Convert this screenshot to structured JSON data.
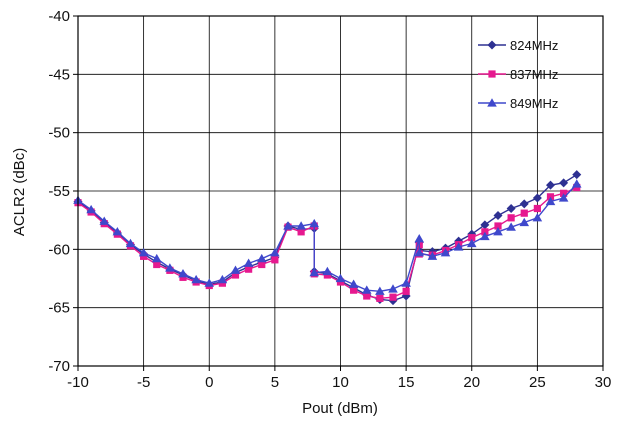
{
  "chart_data": {
    "type": "line",
    "xlabel": "Pout (dBm)",
    "ylabel": "ACLR2 (dBc)",
    "xlim": [
      -10,
      30
    ],
    "ylim": [
      -70,
      -40
    ],
    "x_ticks": [
      -10,
      -5,
      0,
      5,
      10,
      15,
      20,
      25,
      30
    ],
    "y_ticks": [
      -40,
      -45,
      -50,
      -55,
      -60,
      -65,
      -70
    ],
    "grid": true,
    "legend_position": "top-right",
    "series": [
      {
        "name": "824MHz",
        "color": "#2e3192",
        "marker": "diamond",
        "x": [
          -10,
          -9,
          -8,
          -7,
          -6,
          -5,
          -4,
          -3,
          -2,
          -1,
          0,
          1,
          2,
          3,
          4,
          5,
          6,
          7,
          8,
          8,
          9,
          10,
          11,
          12,
          13,
          14,
          15,
          16,
          16,
          17,
          18,
          19,
          20,
          21,
          22,
          23,
          24,
          25,
          26,
          27,
          28
        ],
        "y": [
          -55.9,
          -56.7,
          -57.7,
          -58.6,
          -59.6,
          -60.4,
          -61.1,
          -61.7,
          -62.2,
          -62.7,
          -63.0,
          -62.8,
          -62.0,
          -61.5,
          -61.1,
          -60.7,
          -58.0,
          -58.3,
          -58.2,
          -61.9,
          -62.1,
          -62.7,
          -63.3,
          -63.9,
          -64.3,
          -64.4,
          -64.0,
          -59.4,
          -60.1,
          -60.2,
          -59.9,
          -59.3,
          -58.7,
          -57.9,
          -57.1,
          -56.5,
          -56.1,
          -55.6,
          -54.5,
          -54.3,
          -53.6
        ]
      },
      {
        "name": "837MHz",
        "color": "#e6198f",
        "marker": "square",
        "x": [
          -10,
          -9,
          -8,
          -7,
          -6,
          -5,
          -4,
          -3,
          -2,
          -1,
          0,
          1,
          2,
          3,
          4,
          5,
          6,
          7,
          8,
          8,
          9,
          10,
          11,
          12,
          13,
          14,
          15,
          16,
          16,
          17,
          18,
          19,
          20,
          21,
          22,
          23,
          24,
          25,
          26,
          27,
          28
        ],
        "y": [
          -56.0,
          -56.8,
          -57.8,
          -58.7,
          -59.7,
          -60.6,
          -61.3,
          -61.8,
          -62.4,
          -62.8,
          -63.1,
          -62.9,
          -62.2,
          -61.7,
          -61.3,
          -60.9,
          -58.1,
          -58.5,
          -58.0,
          -62.1,
          -62.2,
          -62.8,
          -63.5,
          -64.0,
          -64.2,
          -64.1,
          -63.6,
          -59.6,
          -60.4,
          -60.5,
          -60.1,
          -59.6,
          -59.0,
          -58.5,
          -58.0,
          -57.3,
          -56.9,
          -56.5,
          -55.5,
          -55.2,
          -54.7
        ]
      },
      {
        "name": "849MHz",
        "color": "#3f48cc",
        "marker": "triangle",
        "x": [
          -10,
          -9,
          -8,
          -7,
          -6,
          -5,
          -4,
          -3,
          -2,
          -1,
          0,
          1,
          2,
          3,
          4,
          5,
          6,
          7,
          8,
          8,
          9,
          10,
          11,
          12,
          13,
          14,
          15,
          16,
          16,
          17,
          18,
          19,
          20,
          21,
          22,
          23,
          24,
          25,
          26,
          27,
          28
        ],
        "y": [
          -55.8,
          -56.6,
          -57.6,
          -58.5,
          -59.5,
          -60.3,
          -60.8,
          -61.6,
          -62.1,
          -62.6,
          -62.9,
          -62.6,
          -61.8,
          -61.2,
          -60.8,
          -60.3,
          -58.0,
          -58.0,
          -57.8,
          -62.0,
          -61.9,
          -62.5,
          -63.0,
          -63.5,
          -63.6,
          -63.4,
          -62.9,
          -59.1,
          -60.3,
          -60.6,
          -60.3,
          -59.8,
          -59.5,
          -58.9,
          -58.5,
          -58.1,
          -57.7,
          -57.3,
          -55.9,
          -55.6,
          -54.4
        ]
      }
    ]
  }
}
